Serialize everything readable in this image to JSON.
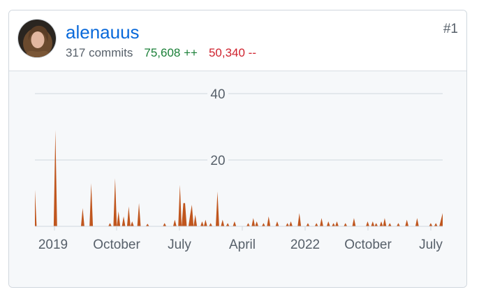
{
  "contributor": {
    "username": "alenauus",
    "commits": "317 commits",
    "additions": "75,608 ++",
    "deletions": "50,340 --",
    "rank": "#1"
  },
  "colors": {
    "link": "#0969da",
    "additions": "#1a7f37",
    "deletions": "#cf222e",
    "area_fill": "#c0561e"
  },
  "chart_data": {
    "type": "area",
    "y_ticks": [
      "40",
      "20"
    ],
    "x_ticks": [
      "2019",
      "October",
      "July",
      "April",
      "2022",
      "October",
      "July"
    ],
    "ylim": [
      0,
      40
    ],
    "grid": true,
    "weeks": 240,
    "peaks": [
      [
        0,
        11
      ],
      [
        12,
        29
      ],
      [
        28,
        5.5
      ],
      [
        33,
        13
      ],
      [
        44,
        1
      ],
      [
        47,
        14.5
      ],
      [
        49,
        4.5
      ],
      [
        52,
        3
      ],
      [
        55,
        6
      ],
      [
        57,
        1.5
      ],
      [
        61,
        7
      ],
      [
        66,
        0.8
      ],
      [
        76,
        1
      ],
      [
        82,
        2
      ],
      [
        85,
        12.5
      ],
      [
        87,
        7
      ],
      [
        88,
        7
      ],
      [
        91,
        3.5
      ],
      [
        92,
        6.5
      ],
      [
        94,
        3.5
      ],
      [
        98,
        1.5
      ],
      [
        100,
        2
      ],
      [
        103,
        1
      ],
      [
        107,
        10.5
      ],
      [
        110,
        2
      ],
      [
        113,
        1
      ],
      [
        117,
        1.5
      ],
      [
        125,
        1
      ],
      [
        128,
        2.5
      ],
      [
        130,
        1.5
      ],
      [
        134,
        1
      ],
      [
        137,
        3
      ],
      [
        142,
        1.5
      ],
      [
        148,
        1
      ],
      [
        150,
        1.5
      ],
      [
        155,
        4
      ],
      [
        160,
        1
      ],
      [
        165,
        1
      ],
      [
        168,
        2.5
      ],
      [
        172,
        1.5
      ],
      [
        175,
        1
      ],
      [
        177,
        1.5
      ],
      [
        182,
        1
      ],
      [
        187,
        2.5
      ],
      [
        195,
        1.5
      ],
      [
        198,
        1.5
      ],
      [
        200,
        1
      ],
      [
        203,
        1.5
      ],
      [
        205,
        2.5
      ],
      [
        208,
        1
      ],
      [
        213,
        1
      ],
      [
        218,
        2
      ],
      [
        224,
        2.5
      ],
      [
        232,
        1
      ],
      [
        235,
        1
      ],
      [
        238,
        2
      ],
      [
        239,
        4
      ]
    ]
  }
}
